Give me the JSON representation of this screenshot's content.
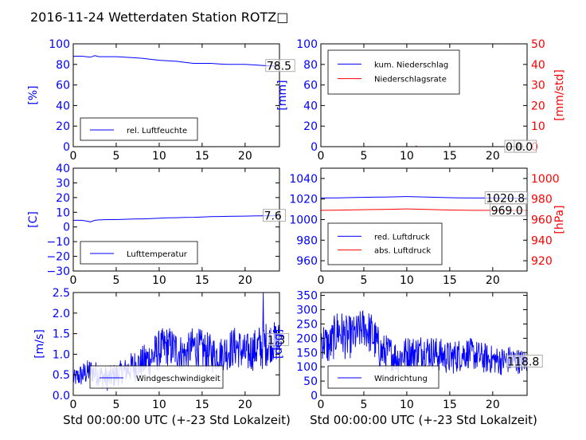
{
  "title": "2016-11-24 Wetterdaten Station ROTZ□",
  "x_axis_label": "Std 00:00:00 UTC (+-23 Std Lokalzeit)",
  "chart_data": [
    {
      "id": "humidity",
      "type": "line",
      "ylabel": "[%]",
      "ylim": [
        0,
        100
      ],
      "yticks": [
        0,
        20,
        40,
        60,
        80,
        100
      ],
      "xlim": [
        0,
        24
      ],
      "xticks": [
        0,
        5,
        10,
        15,
        20
      ],
      "legend": "bottom-left",
      "series": [
        {
          "name": "rel. Luftfeuchte",
          "color": "#0000ff",
          "x": [
            0,
            1,
            2,
            2.5,
            3,
            4,
            5,
            6,
            7,
            8,
            9,
            10,
            11,
            12,
            13,
            14,
            15,
            16,
            17,
            18,
            19,
            20,
            21,
            22,
            23,
            24
          ],
          "y": [
            88,
            88,
            87,
            88.5,
            87.5,
            87.5,
            87.5,
            87,
            86.5,
            86,
            85,
            84,
            83.5,
            83,
            82,
            81,
            81,
            81,
            80.5,
            80,
            80,
            80,
            79.5,
            79,
            78.5,
            78.5
          ]
        }
      ],
      "annotations": [
        {
          "text": "78.5",
          "x": 22.5,
          "y": 78.5
        }
      ]
    },
    {
      "id": "precipitation",
      "type": "line",
      "ylabel": "[mm]",
      "ylim": [
        0,
        100
      ],
      "yticks": [
        0,
        20,
        40,
        60,
        80,
        100
      ],
      "ylabel_right": "[mm/std]",
      "ylim_right": [
        0,
        50
      ],
      "yticks_right": [
        0,
        10,
        20,
        30,
        40,
        50
      ],
      "xlim": [
        0,
        24
      ],
      "xticks": [
        0,
        5,
        10,
        15,
        20
      ],
      "legend": "top-left",
      "series": [
        {
          "name": "kum. Niederschlag",
          "axis": "left",
          "color": "#0000ff",
          "x": [
            0,
            24
          ],
          "y": [
            0,
            0
          ]
        },
        {
          "name": "Niederschlagsrate",
          "axis": "right",
          "color": "#ff0000",
          "x": [
            0,
            11,
            11.1,
            11.2,
            24
          ],
          "y": [
            0,
            0,
            0.3,
            0,
            0
          ]
        }
      ],
      "annotations": [
        {
          "text": "0.0",
          "x": 21.5,
          "y": 0
        },
        {
          "text": "0.0",
          "x": 22.6,
          "y": 0
        }
      ]
    },
    {
      "id": "temperature",
      "type": "line",
      "ylabel": "[C]",
      "ylim": [
        -30,
        40
      ],
      "yticks": [
        -30,
        -20,
        -10,
        0,
        10,
        20,
        30,
        40
      ],
      "xlim": [
        0,
        24
      ],
      "xticks": [
        0,
        5,
        10,
        15,
        20
      ],
      "legend": "bottom-left",
      "series": [
        {
          "name": "Lufttemperatur",
          "color": "#0000ff",
          "x": [
            0,
            1,
            1.5,
            2,
            2.5,
            3,
            4,
            5,
            6,
            7,
            8,
            9,
            10,
            11,
            12,
            13,
            14,
            15,
            16,
            17,
            18,
            19,
            20,
            21,
            22,
            23,
            24
          ],
          "y": [
            4.5,
            4.5,
            4,
            3.5,
            4.5,
            4.8,
            5,
            5,
            5.2,
            5.4,
            5.5,
            5.7,
            6,
            6.2,
            6.3,
            6.5,
            6.6,
            6.8,
            7,
            7.1,
            7.2,
            7.3,
            7.4,
            7.5,
            7.6,
            7.6,
            7.6
          ]
        }
      ],
      "annotations": [
        {
          "text": "7.6",
          "x": 22.2,
          "y": 7.6
        }
      ]
    },
    {
      "id": "pressure",
      "type": "line",
      "ylim": [
        950,
        1050
      ],
      "yticks": [
        960,
        980,
        1000,
        1020,
        1040
      ],
      "ylabel_right": "[hPa]",
      "ylim_right": [
        910,
        1010
      ],
      "yticks_right": [
        920,
        940,
        960,
        980,
        1000
      ],
      "xlim": [
        0,
        24
      ],
      "xticks": [
        0,
        5,
        10,
        15,
        20
      ],
      "legend": "bottom-left",
      "series": [
        {
          "name": "red. Luftdruck",
          "axis": "left",
          "color": "#0000ff",
          "x": [
            0,
            2,
            4,
            6,
            8,
            10,
            12,
            14,
            16,
            18,
            20,
            22,
            24
          ],
          "y": [
            1021,
            1021.2,
            1021.5,
            1021.8,
            1022,
            1022.4,
            1022,
            1021.5,
            1021.2,
            1021,
            1021,
            1020.8,
            1020.8
          ]
        },
        {
          "name": "abs. Luftdruck",
          "axis": "right",
          "color": "#ff0000",
          "x": [
            0,
            2,
            4,
            6,
            8,
            10,
            12,
            14,
            16,
            18,
            20,
            22,
            24
          ],
          "y": [
            969,
            969.2,
            969.5,
            969.8,
            970,
            970.4,
            970,
            969.5,
            969.2,
            969,
            969,
            969,
            969
          ]
        }
      ],
      "annotations": [
        {
          "text": "1020.8",
          "x": 19.2,
          "y": 1020.8,
          "axis": "left"
        },
        {
          "text": "969.0",
          "x": 19.8,
          "y": 969.0,
          "axis": "right"
        }
      ]
    },
    {
      "id": "windspeed",
      "type": "line",
      "ylabel": "[m/s]",
      "ylim": [
        0,
        2.5
      ],
      "yticks": [
        0.0,
        0.5,
        1.0,
        1.5,
        2.0,
        2.5
      ],
      "xlim": [
        0,
        24
      ],
      "xticks": [
        0,
        5,
        10,
        15,
        20
      ],
      "legend": "bottom-center",
      "series": [
        {
          "name": "Windgeschwindigkeit",
          "color": "#0000ff",
          "x": [
            0,
            1,
            2,
            3,
            4,
            5,
            6,
            7,
            8,
            9,
            10,
            11,
            12,
            13,
            14,
            15,
            16,
            17,
            18,
            19,
            20,
            21,
            22,
            23,
            24
          ],
          "y": [
            0.4,
            0.5,
            0.6,
            0.5,
            0.4,
            0.5,
            0.6,
            0.7,
            0.8,
            0.9,
            1.1,
            1.2,
            1.1,
            1.0,
            1.2,
            1.1,
            1.0,
            1.0,
            1.1,
            1.2,
            1.0,
            1.1,
            1.2,
            1.3,
            1.3
          ],
          "spread": [
            0.2,
            0.3,
            0.3,
            0.3,
            0.3,
            0.3,
            0.3,
            0.4,
            0.4,
            0.5,
            0.5,
            0.5,
            0.5,
            0.4,
            0.5,
            0.5,
            0.5,
            0.4,
            0.5,
            0.5,
            0.5,
            0.5,
            0.6,
            0.5,
            0.5
          ],
          "peak": {
            "x": 22.1,
            "y": 2.5
          }
        }
      ],
      "annotations": [
        {
          "text": "1.3",
          "x": 22.6,
          "y": 1.35
        }
      ]
    },
    {
      "id": "winddir",
      "type": "line",
      "ylabel": "[deg]",
      "ylim": [
        0,
        360
      ],
      "yticks": [
        0,
        50,
        100,
        150,
        200,
        250,
        300,
        350
      ],
      "xlim": [
        0,
        24
      ],
      "xticks": [
        0,
        5,
        10,
        15,
        20
      ],
      "legend": "bottom-left",
      "series": [
        {
          "name": "Windrichtung",
          "color": "#0000ff",
          "x": [
            0,
            1,
            2,
            3,
            4,
            5,
            6,
            7,
            8,
            9,
            10,
            11,
            12,
            13,
            14,
            15,
            16,
            17,
            18,
            19,
            20,
            21,
            22,
            23,
            24
          ],
          "y": [
            200,
            170,
            230,
            200,
            210,
            240,
            210,
            150,
            150,
            130,
            150,
            150,
            160,
            150,
            140,
            130,
            140,
            150,
            140,
            130,
            125,
            120,
            125,
            120,
            118
          ],
          "spread": [
            70,
            70,
            80,
            80,
            70,
            70,
            80,
            70,
            60,
            60,
            60,
            60,
            60,
            60,
            60,
            60,
            60,
            55,
            55,
            55,
            50,
            50,
            50,
            45,
            40
          ]
        }
      ],
      "annotations": [
        {
          "text": "118.8",
          "x": 21.7,
          "y": 118.8
        }
      ]
    }
  ]
}
